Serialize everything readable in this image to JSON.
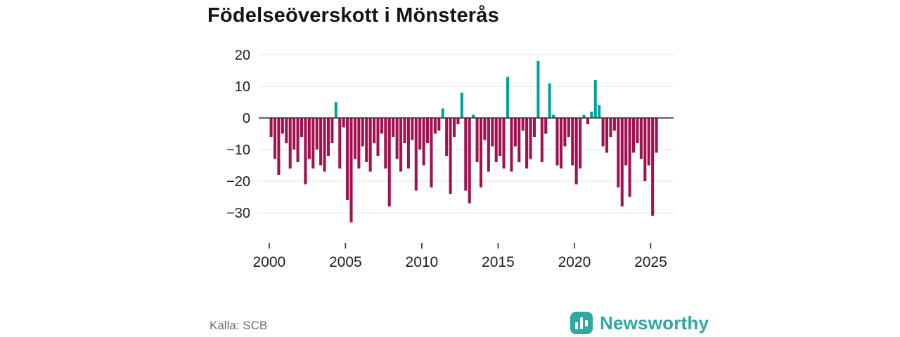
{
  "footer": {
    "source": "Källa: SCB",
    "brand": "Newsworthy"
  },
  "chart_data": {
    "type": "bar",
    "title": "Födelseöverskott i Mönsterås",
    "xlabel": "",
    "ylabel": "",
    "x_ticks": [
      2000,
      2005,
      2010,
      2015,
      2020,
      2025
    ],
    "y_ticks": [
      20,
      10,
      0,
      -10,
      -20,
      -30
    ],
    "x_domain": [
      1999.5,
      2026.5
    ],
    "ylim": [
      -35,
      22
    ],
    "grid": true,
    "legend": "none",
    "colors": {
      "positive": "#00a49b",
      "negative": "#a31050"
    },
    "series": [
      {
        "name": "Födelseöverskott",
        "points": [
          [
            2000.0,
            -6
          ],
          [
            2000.25,
            -13
          ],
          [
            2000.5,
            -18
          ],
          [
            2000.75,
            -5
          ],
          [
            2001.0,
            -8
          ],
          [
            2001.25,
            -16
          ],
          [
            2001.5,
            -10
          ],
          [
            2001.75,
            -14
          ],
          [
            2002.0,
            -6
          ],
          [
            2002.25,
            -21
          ],
          [
            2002.5,
            -13
          ],
          [
            2002.75,
            -16
          ],
          [
            2003.0,
            -10
          ],
          [
            2003.25,
            -15
          ],
          [
            2003.5,
            -17
          ],
          [
            2003.75,
            -12
          ],
          [
            2004.0,
            -8
          ],
          [
            2004.25,
            5
          ],
          [
            2004.5,
            -16
          ],
          [
            2004.75,
            -3
          ],
          [
            2005.0,
            -26
          ],
          [
            2005.25,
            -33
          ],
          [
            2005.5,
            -13
          ],
          [
            2005.75,
            -16
          ],
          [
            2006.0,
            -9
          ],
          [
            2006.25,
            -14
          ],
          [
            2006.5,
            -17
          ],
          [
            2006.75,
            -8
          ],
          [
            2007.0,
            -12
          ],
          [
            2007.25,
            -5
          ],
          [
            2007.5,
            -16
          ],
          [
            2007.75,
            -28
          ],
          [
            2008.0,
            -6
          ],
          [
            2008.25,
            -13
          ],
          [
            2008.5,
            -17
          ],
          [
            2008.75,
            -8
          ],
          [
            2009.0,
            -16
          ],
          [
            2009.25,
            -7
          ],
          [
            2009.5,
            -23
          ],
          [
            2009.75,
            -10
          ],
          [
            2010.0,
            -15
          ],
          [
            2010.25,
            -8
          ],
          [
            2010.5,
            -22
          ],
          [
            2010.75,
            -5
          ],
          [
            2011.0,
            -4
          ],
          [
            2011.25,
            3
          ],
          [
            2011.5,
            -12
          ],
          [
            2011.75,
            -24
          ],
          [
            2012.0,
            -6
          ],
          [
            2012.25,
            -2
          ],
          [
            2012.5,
            8
          ],
          [
            2012.75,
            -23
          ],
          [
            2013.0,
            -27
          ],
          [
            2013.25,
            1
          ],
          [
            2013.5,
            -14
          ],
          [
            2013.75,
            -22
          ],
          [
            2014.0,
            -7
          ],
          [
            2014.25,
            -17
          ],
          [
            2014.5,
            -9
          ],
          [
            2014.75,
            -14
          ],
          [
            2015.0,
            -12
          ],
          [
            2015.25,
            -16
          ],
          [
            2015.5,
            13
          ],
          [
            2015.75,
            -17
          ],
          [
            2016.0,
            -9
          ],
          [
            2016.25,
            -14
          ],
          [
            2016.5,
            -4
          ],
          [
            2016.75,
            -16
          ],
          [
            2017.0,
            -13
          ],
          [
            2017.25,
            -6
          ],
          [
            2017.5,
            18
          ],
          [
            2017.75,
            -14
          ],
          [
            2018.0,
            -5
          ],
          [
            2018.25,
            11
          ],
          [
            2018.5,
            1
          ],
          [
            2018.75,
            -15
          ],
          [
            2019.0,
            -16
          ],
          [
            2019.25,
            -9
          ],
          [
            2019.5,
            -6
          ],
          [
            2019.75,
            -15
          ],
          [
            2020.0,
            -21
          ],
          [
            2020.25,
            -16
          ],
          [
            2020.5,
            1
          ],
          [
            2020.75,
            -2
          ],
          [
            2021.0,
            2
          ],
          [
            2021.25,
            12
          ],
          [
            2021.5,
            4
          ],
          [
            2021.75,
            -9
          ],
          [
            2022.0,
            -11
          ],
          [
            2022.25,
            -6
          ],
          [
            2022.5,
            -4
          ],
          [
            2022.75,
            -22
          ],
          [
            2023.0,
            -28
          ],
          [
            2023.25,
            -15
          ],
          [
            2023.5,
            -25
          ],
          [
            2023.75,
            -11
          ],
          [
            2024.0,
            -8
          ],
          [
            2024.25,
            -13
          ],
          [
            2024.5,
            -20
          ],
          [
            2024.75,
            -15
          ],
          [
            2025.0,
            -31
          ],
          [
            2025.25,
            -11
          ]
        ]
      }
    ]
  }
}
